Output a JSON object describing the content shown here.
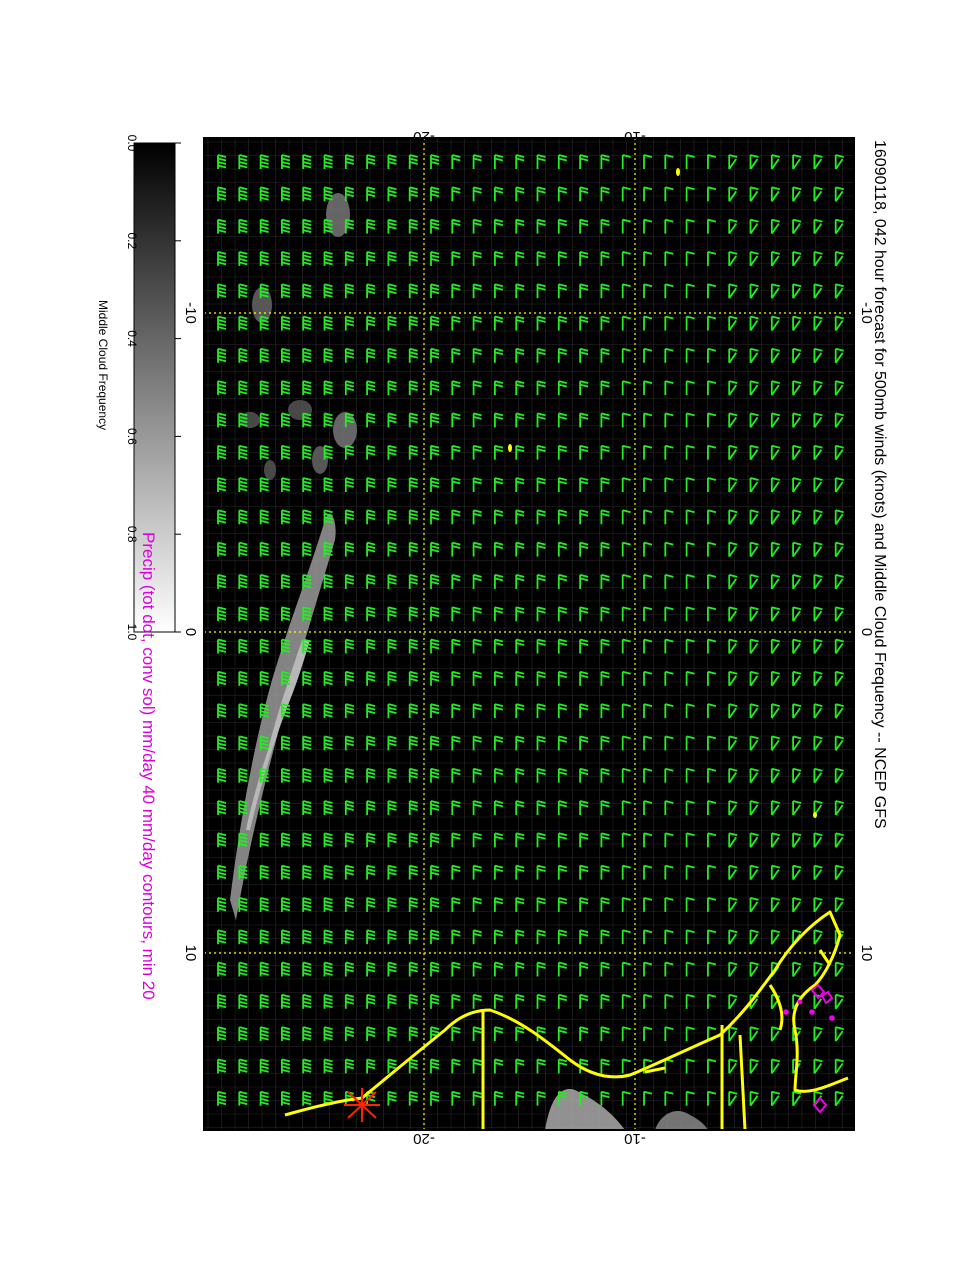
{
  "title": "16090118, 042 hour forecast for 500mb winds (knots) and Middle Cloud Frequency -- NCEP GFS",
  "subtitle": "Precip (tot dot, conv sol) mm/day 40 mm/day contours, min 20",
  "colorbar": {
    "label": "Middle Cloud Frequency",
    "ticks": [
      "0.0",
      "0.2",
      "0.4",
      "0.6",
      "0.8",
      "1.0"
    ],
    "colors": {
      "low": "#000000",
      "high": "#ffffff"
    }
  },
  "axes": {
    "top_ticks": [
      "-20",
      "-10"
    ],
    "bottom_ticks": [
      "-20",
      "-10"
    ],
    "left_ticks": [
      "-10",
      "0",
      "10"
    ],
    "right_ticks": [
      "-10",
      "0",
      "10"
    ]
  },
  "colors": {
    "background": "#000000",
    "wind_barbs": "#22ee22",
    "coastline": "#ffff00",
    "gridlines": "#ffff00",
    "precip_contours": "#ee00ee",
    "subtitle": "#dd00dd",
    "storm_marker": "#ff2200"
  },
  "icons": {
    "storm": "storm-marker-icon"
  }
}
